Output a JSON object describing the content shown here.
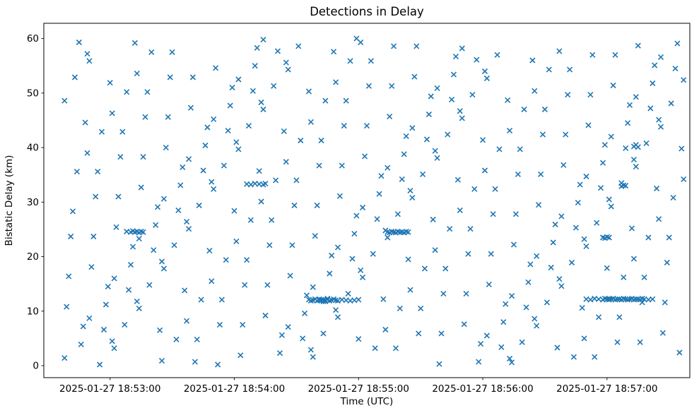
{
  "window": {
    "title": "Detections in Delay"
  },
  "chart_data": {
    "type": "scatter",
    "title": "Detections in Delay",
    "xlabel": "Time (UTC)",
    "ylabel": "Bistatic Delay (km)",
    "marker": "x",
    "marker_color": "#1f77b4",
    "grid": false,
    "legend": "none",
    "x_axis": {
      "tick_labels": [
        "2025-01-27 18:53:00",
        "2025-01-27 18:54:00",
        "2025-01-27 18:55:00",
        "2025-01-27 18:56:00",
        "2025-01-27 18:57:00"
      ],
      "tick_offsets_s": [
        32,
        92,
        152,
        212,
        272
      ],
      "time_origin_note": "point x values are seconds; 32 s corresponds to tick 2025-01-27 18:53:00 UTC",
      "lim_s": [
        0,
        312
      ]
    },
    "y_axis": {
      "ticks": [
        0,
        10,
        20,
        30,
        40,
        50,
        60
      ],
      "lim": [
        -2.2,
        62.8
      ]
    },
    "points_t_s_delay_km": [
      [
        10,
        48.6
      ],
      [
        18,
        3.9
      ],
      [
        13,
        23.7
      ],
      [
        21,
        57.2
      ],
      [
        11,
        10.8
      ],
      [
        16,
        35.6
      ],
      [
        20,
        44.6
      ],
      [
        12,
        16.4
      ],
      [
        15,
        52.9
      ],
      [
        19,
        7.2
      ],
      [
        14,
        28.3
      ],
      [
        17,
        59.3
      ],
      [
        10,
        1.4
      ],
      [
        21,
        39.0
      ],
      [
        22,
        55.9
      ],
      [
        30,
        11.2
      ],
      [
        25,
        31.0
      ],
      [
        33,
        4.5
      ],
      [
        23,
        18.1
      ],
      [
        28,
        42.9
      ],
      [
        32,
        51.9
      ],
      [
        24,
        23.7
      ],
      [
        27,
        0.2
      ],
      [
        31,
        14.5
      ],
      [
        26,
        35.6
      ],
      [
        29,
        6.6
      ],
      [
        22,
        8.7
      ],
      [
        33,
        46.3
      ],
      [
        34,
        3.2
      ],
      [
        42,
        18.5
      ],
      [
        37,
        38.3
      ],
      [
        45,
        11.8
      ],
      [
        35,
        25.4
      ],
      [
        40,
        50.2
      ],
      [
        44,
        59.2
      ],
      [
        36,
        31.0
      ],
      [
        39,
        7.5
      ],
      [
        43,
        21.8
      ],
      [
        38,
        42.9
      ],
      [
        41,
        13.9
      ],
      [
        34,
        16.0
      ],
      [
        45,
        53.6
      ],
      [
        46,
        10.5
      ],
      [
        54,
        25.8
      ],
      [
        49,
        45.6
      ],
      [
        57,
        19.1
      ],
      [
        47,
        32.7
      ],
      [
        52,
        57.5
      ],
      [
        56,
        6.5
      ],
      [
        48,
        38.3
      ],
      [
        51,
        14.8
      ],
      [
        55,
        29.1
      ],
      [
        50,
        50.2
      ],
      [
        53,
        21.2
      ],
      [
        46,
        23.3
      ],
      [
        57,
        0.9
      ],
      [
        58,
        17.8
      ],
      [
        66,
        33.1
      ],
      [
        61,
        52.9
      ],
      [
        69,
        26.4
      ],
      [
        59,
        40.0
      ],
      [
        64,
        4.8
      ],
      [
        68,
        13.8
      ],
      [
        60,
        45.6
      ],
      [
        63,
        22.1
      ],
      [
        67,
        36.4
      ],
      [
        62,
        57.5
      ],
      [
        65,
        28.5
      ],
      [
        58,
        30.6
      ],
      [
        69,
        8.2
      ],
      [
        70,
        25.1
      ],
      [
        78,
        40.4
      ],
      [
        73,
        0.7
      ],
      [
        81,
        33.7
      ],
      [
        71,
        47.3
      ],
      [
        76,
        12.1
      ],
      [
        80,
        21.1
      ],
      [
        72,
        52.9
      ],
      [
        75,
        29.4
      ],
      [
        79,
        43.7
      ],
      [
        74,
        4.8
      ],
      [
        77,
        35.8
      ],
      [
        70,
        37.9
      ],
      [
        81,
        15.5
      ],
      [
        82,
        32.4
      ],
      [
        90,
        47.7
      ],
      [
        85,
        7.5
      ],
      [
        93,
        41.0
      ],
      [
        83,
        54.6
      ],
      [
        88,
        19.4
      ],
      [
        92,
        28.4
      ],
      [
        84,
        0.2
      ],
      [
        87,
        36.7
      ],
      [
        91,
        51.0
      ],
      [
        86,
        12.1
      ],
      [
        89,
        43.1
      ],
      [
        82,
        45.2
      ],
      [
        93,
        22.8
      ],
      [
        94,
        39.7
      ],
      [
        102,
        55.0
      ],
      [
        97,
        14.8
      ],
      [
        105,
        48.3
      ],
      [
        95,
        1.9
      ],
      [
        100,
        26.7
      ],
      [
        104,
        35.7
      ],
      [
        96,
        7.5
      ],
      [
        99,
        44.0
      ],
      [
        103,
        58.3
      ],
      [
        98,
        19.4
      ],
      [
        101,
        50.4
      ],
      [
        94,
        52.5
      ],
      [
        105,
        30.1
      ],
      [
        106,
        47.0
      ],
      [
        114,
        2.3
      ],
      [
        109,
        22.1
      ],
      [
        117,
        55.6
      ],
      [
        107,
        9.2
      ],
      [
        112,
        34.0
      ],
      [
        116,
        43.0
      ],
      [
        108,
        14.8
      ],
      [
        111,
        51.3
      ],
      [
        115,
        5.6
      ],
      [
        110,
        26.7
      ],
      [
        113,
        57.7
      ],
      [
        106,
        59.8
      ],
      [
        117,
        37.4
      ],
      [
        118,
        54.3
      ],
      [
        126,
        9.6
      ],
      [
        121,
        29.4
      ],
      [
        129,
        2.9
      ],
      [
        119,
        16.5
      ],
      [
        124,
        41.3
      ],
      [
        128,
        50.3
      ],
      [
        120,
        22.1
      ],
      [
        123,
        58.6
      ],
      [
        127,
        12.9
      ],
      [
        122,
        34.0
      ],
      [
        125,
        5.0
      ],
      [
        118,
        7.1
      ],
      [
        129,
        44.7
      ],
      [
        130,
        1.6
      ],
      [
        138,
        16.9
      ],
      [
        133,
        36.7
      ],
      [
        141,
        10.2
      ],
      [
        131,
        23.8
      ],
      [
        136,
        48.6
      ],
      [
        140,
        57.6
      ],
      [
        132,
        29.4
      ],
      [
        135,
        5.9
      ],
      [
        139,
        20.2
      ],
      [
        134,
        41.3
      ],
      [
        137,
        12.3
      ],
      [
        130,
        14.4
      ],
      [
        141,
        52.0
      ],
      [
        142,
        8.9
      ],
      [
        150,
        24.2
      ],
      [
        145,
        44.0
      ],
      [
        153,
        17.5
      ],
      [
        143,
        31.1
      ],
      [
        148,
        55.9
      ],
      [
        152,
        4.9
      ],
      [
        144,
        36.7
      ],
      [
        147,
        13.2
      ],
      [
        151,
        27.5
      ],
      [
        146,
        48.6
      ],
      [
        149,
        19.6
      ],
      [
        142,
        21.7
      ],
      [
        153,
        59.3
      ],
      [
        154,
        16.2
      ],
      [
        162,
        31.5
      ],
      [
        157,
        51.3
      ],
      [
        165,
        24.8
      ],
      [
        155,
        38.4
      ],
      [
        160,
        3.2
      ],
      [
        164,
        12.2
      ],
      [
        156,
        44.0
      ],
      [
        159,
        20.5
      ],
      [
        163,
        34.8
      ],
      [
        158,
        55.9
      ],
      [
        161,
        26.9
      ],
      [
        154,
        29.0
      ],
      [
        165,
        6.6
      ],
      [
        166,
        23.5
      ],
      [
        174,
        38.8
      ],
      [
        169,
        58.6
      ],
      [
        177,
        32.1
      ],
      [
        167,
        45.7
      ],
      [
        172,
        10.5
      ],
      [
        176,
        19.5
      ],
      [
        168,
        51.3
      ],
      [
        171,
        27.8
      ],
      [
        175,
        42.1
      ],
      [
        170,
        3.2
      ],
      [
        173,
        34.2
      ],
      [
        166,
        36.3
      ],
      [
        177,
        13.9
      ],
      [
        178,
        30.8
      ],
      [
        186,
        46.1
      ],
      [
        181,
        5.9
      ],
      [
        189,
        39.4
      ],
      [
        179,
        53.0
      ],
      [
        184,
        17.8
      ],
      [
        188,
        26.8
      ],
      [
        180,
        58.6
      ],
      [
        183,
        35.1
      ],
      [
        187,
        49.4
      ],
      [
        182,
        10.5
      ],
      [
        185,
        41.5
      ],
      [
        178,
        43.6
      ],
      [
        189,
        21.2
      ],
      [
        190,
        38.1
      ],
      [
        198,
        53.4
      ],
      [
        193,
        13.2
      ],
      [
        201,
        46.7
      ],
      [
        191,
        0.3
      ],
      [
        196,
        25.1
      ],
      [
        200,
        34.1
      ],
      [
        192,
        5.9
      ],
      [
        195,
        42.4
      ],
      [
        199,
        56.7
      ],
      [
        194,
        17.8
      ],
      [
        197,
        48.8
      ],
      [
        190,
        50.9
      ],
      [
        201,
        28.5
      ],
      [
        202,
        45.4
      ],
      [
        210,
        0.7
      ],
      [
        205,
        20.5
      ],
      [
        213,
        54.0
      ],
      [
        203,
        7.6
      ],
      [
        208,
        32.4
      ],
      [
        212,
        41.4
      ],
      [
        204,
        13.2
      ],
      [
        207,
        49.7
      ],
      [
        211,
        4.0
      ],
      [
        206,
        25.1
      ],
      [
        209,
        56.1
      ],
      [
        202,
        58.2
      ],
      [
        213,
        35.8
      ],
      [
        214,
        52.7
      ],
      [
        222,
        8.0
      ],
      [
        217,
        27.8
      ],
      [
        225,
        1.3
      ],
      [
        215,
        14.9
      ],
      [
        220,
        39.7
      ],
      [
        224,
        48.7
      ],
      [
        216,
        20.5
      ],
      [
        219,
        57.0
      ],
      [
        223,
        11.3
      ],
      [
        218,
        32.4
      ],
      [
        221,
        3.4
      ],
      [
        214,
        5.5
      ],
      [
        225,
        43.1
      ],
      [
        226,
        0.6
      ],
      [
        234,
        15.3
      ],
      [
        229,
        35.1
      ],
      [
        237,
        8.6
      ],
      [
        227,
        22.2
      ],
      [
        232,
        47.0
      ],
      [
        236,
        56.0
      ],
      [
        228,
        27.8
      ],
      [
        231,
        4.3
      ],
      [
        235,
        18.6
      ],
      [
        230,
        39.7
      ],
      [
        233,
        10.7
      ],
      [
        226,
        12.8
      ],
      [
        237,
        50.4
      ],
      [
        238,
        7.3
      ],
      [
        246,
        22.6
      ],
      [
        241,
        42.4
      ],
      [
        249,
        15.9
      ],
      [
        239,
        29.5
      ],
      [
        244,
        54.3
      ],
      [
        248,
        3.3
      ],
      [
        240,
        35.1
      ],
      [
        243,
        11.6
      ],
      [
        247,
        25.9
      ],
      [
        242,
        47.0
      ],
      [
        245,
        18.0
      ],
      [
        238,
        20.1
      ],
      [
        249,
        57.7
      ],
      [
        250,
        14.6
      ],
      [
        258,
        29.9
      ],
      [
        253,
        49.7
      ],
      [
        261,
        23.2
      ],
      [
        251,
        36.8
      ],
      [
        256,
        1.6
      ],
      [
        260,
        10.6
      ],
      [
        252,
        42.4
      ],
      [
        255,
        18.9
      ],
      [
        259,
        33.2
      ],
      [
        254,
        54.3
      ],
      [
        257,
        25.3
      ],
      [
        250,
        27.4
      ],
      [
        261,
        5.0
      ],
      [
        262,
        21.9
      ],
      [
        270,
        37.2
      ],
      [
        265,
        57.0
      ],
      [
        273,
        30.5
      ],
      [
        263,
        44.1
      ],
      [
        268,
        8.9
      ],
      [
        272,
        17.9
      ],
      [
        264,
        49.7
      ],
      [
        267,
        26.2
      ],
      [
        271,
        40.5
      ],
      [
        266,
        1.6
      ],
      [
        269,
        32.6
      ],
      [
        262,
        34.7
      ],
      [
        273,
        12.3
      ],
      [
        274,
        29.2
      ],
      [
        282,
        44.5
      ],
      [
        277,
        4.3
      ],
      [
        285,
        37.8
      ],
      [
        275,
        51.4
      ],
      [
        280,
        16.2
      ],
      [
        284,
        25.2
      ],
      [
        276,
        57.0
      ],
      [
        279,
        33.5
      ],
      [
        283,
        47.8
      ],
      [
        278,
        8.9
      ],
      [
        281,
        39.9
      ],
      [
        274,
        42.0
      ],
      [
        285,
        19.6
      ],
      [
        286,
        36.5
      ],
      [
        294,
        51.8
      ],
      [
        289,
        11.6
      ],
      [
        297,
        45.1
      ],
      [
        287,
        58.7
      ],
      [
        292,
        23.5
      ],
      [
        296,
        32.5
      ],
      [
        288,
        4.3
      ],
      [
        291,
        40.8
      ],
      [
        295,
        55.1
      ],
      [
        290,
        16.2
      ],
      [
        293,
        47.2
      ],
      [
        286,
        49.3
      ],
      [
        297,
        26.9
      ],
      [
        298,
        43.8
      ],
      [
        306,
        59.1
      ],
      [
        301,
        18.9
      ],
      [
        309,
        52.4
      ],
      [
        299,
        6.0
      ],
      [
        304,
        30.8
      ],
      [
        308,
        39.8
      ],
      [
        300,
        11.6
      ],
      [
        303,
        48.1
      ],
      [
        307,
        2.4
      ],
      [
        302,
        23.5
      ],
      [
        305,
        54.5
      ],
      [
        298,
        56.6
      ],
      [
        309,
        34.2
      ],
      [
        128,
        12.1
      ],
      [
        129,
        11.9
      ],
      [
        130,
        12.0
      ],
      [
        131,
        12.2
      ],
      [
        132,
        11.9
      ],
      [
        133,
        12.0
      ],
      [
        134,
        12.1
      ],
      [
        135,
        11.8
      ],
      [
        136,
        12.0
      ],
      [
        137,
        12.1
      ],
      [
        138,
        11.9
      ],
      [
        139,
        12.0
      ],
      [
        140,
        12.2
      ],
      [
        141,
        12.0
      ],
      [
        142,
        11.9
      ],
      [
        144,
        12.1
      ],
      [
        146,
        12.0
      ],
      [
        148,
        11.9
      ],
      [
        150,
        12.0
      ],
      [
        152,
        12.1
      ],
      [
        133,
        12.2
      ],
      [
        134,
        11.9
      ],
      [
        135,
        12.1
      ],
      [
        136,
        11.8
      ],
      [
        166,
        24.5
      ],
      [
        167,
        24.4
      ],
      [
        168,
        24.6
      ],
      [
        169,
        24.5
      ],
      [
        170,
        24.4
      ],
      [
        171,
        24.6
      ],
      [
        172,
        24.5
      ],
      [
        173,
        24.5
      ],
      [
        174,
        24.4
      ],
      [
        175,
        24.6
      ],
      [
        176,
        24.5
      ],
      [
        262,
        12.2
      ],
      [
        264,
        12.1
      ],
      [
        266,
        12.3
      ],
      [
        268,
        12.2
      ],
      [
        270,
        12.1
      ],
      [
        271,
        12.3
      ],
      [
        272,
        12.2
      ],
      [
        273,
        12.1
      ],
      [
        274,
        12.2
      ],
      [
        275,
        12.3
      ],
      [
        276,
        12.1
      ],
      [
        277,
        12.2
      ],
      [
        278,
        12.2
      ],
      [
        279,
        12.1
      ],
      [
        280,
        12.3
      ],
      [
        281,
        12.2
      ],
      [
        282,
        12.1
      ],
      [
        283,
        12.2
      ],
      [
        284,
        12.3
      ],
      [
        285,
        12.1
      ],
      [
        286,
        12.2
      ],
      [
        287,
        12.2
      ],
      [
        288,
        12.1
      ],
      [
        289,
        12.3
      ],
      [
        290,
        12.2
      ],
      [
        292,
        12.1
      ],
      [
        294,
        12.2
      ],
      [
        40,
        24.6
      ],
      [
        42,
        24.5
      ],
      [
        43,
        24.7
      ],
      [
        44,
        24.5
      ],
      [
        45,
        24.6
      ],
      [
        46,
        24.4
      ],
      [
        47,
        24.6
      ],
      [
        48,
        24.5
      ],
      [
        98,
        33.3
      ],
      [
        100,
        33.2
      ],
      [
        102,
        33.4
      ],
      [
        104,
        33.3
      ],
      [
        106,
        33.2
      ],
      [
        107,
        33.4
      ],
      [
        270,
        23.5
      ],
      [
        271,
        23.4
      ],
      [
        272,
        23.6
      ],
      [
        273,
        23.5
      ],
      [
        279,
        32.9
      ],
      [
        280,
        33.1
      ],
      [
        281,
        33.0
      ],
      [
        285,
        40.2
      ],
      [
        286,
        40.5
      ],
      [
        287,
        40.1
      ],
      [
        151,
        60.0
      ]
    ]
  }
}
